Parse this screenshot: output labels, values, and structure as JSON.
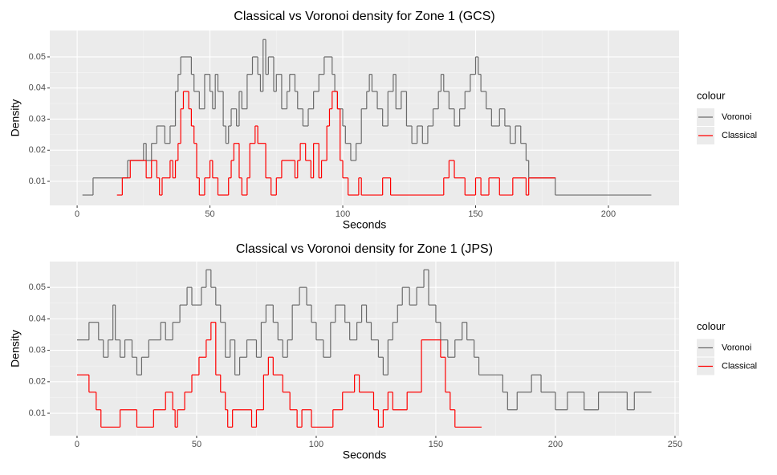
{
  "chart_data": [
    {
      "type": "step",
      "title": "Classical vs Voronoi density for Zone 1 (GCS)",
      "xlabel": "Seconds",
      "ylabel": "Density",
      "xlim": [
        -10.3,
        226.6
      ],
      "ylim": [
        0.00226,
        0.0585
      ],
      "xticks": [
        0,
        50,
        100,
        150,
        200
      ],
      "yticks": [
        0.01,
        0.02,
        0.03,
        0.04,
        0.05
      ],
      "grid": true,
      "legend_title": "colour",
      "legend_position": "right",
      "series": [
        {
          "name": "Voronoi",
          "color": "#6b6b6b",
          "x": [
            2,
            6,
            19,
            25,
            26,
            28,
            30,
            33,
            35,
            37,
            38,
            39,
            43,
            44,
            46,
            48,
            50,
            51,
            52,
            53,
            55,
            56,
            57,
            58,
            60,
            61,
            62,
            64,
            66,
            68,
            69,
            70,
            71,
            72,
            74,
            75,
            77,
            79,
            80,
            82,
            83,
            85,
            87,
            89,
            91,
            93,
            96,
            97,
            98,
            100,
            101,
            103,
            105,
            107,
            109,
            110,
            111,
            113,
            115,
            117,
            119,
            120,
            122,
            124,
            126,
            128,
            130,
            132,
            134,
            136,
            137,
            138,
            140,
            142,
            144,
            146,
            148,
            150,
            151,
            152,
            154,
            156,
            159,
            161,
            163,
            165,
            167,
            169,
            170,
            180,
            216
          ],
          "values": [
            0.0056,
            0.0111,
            0.0167,
            0.0222,
            0.0167,
            0.0222,
            0.0278,
            0.0222,
            0.0278,
            0.0389,
            0.0444,
            0.05,
            0.0444,
            0.0389,
            0.0333,
            0.0444,
            0.0389,
            0.0333,
            0.0444,
            0.0389,
            0.0278,
            0.0222,
            0.0278,
            0.0333,
            0.0278,
            0.0389,
            0.0333,
            0.0444,
            0.05,
            0.0444,
            0.0389,
            0.0556,
            0.0444,
            0.05,
            0.0389,
            0.0444,
            0.0333,
            0.0389,
            0.0444,
            0.0389,
            0.0333,
            0.0278,
            0.0333,
            0.0389,
            0.0444,
            0.05,
            0.0444,
            0.0389,
            0.0333,
            0.0278,
            0.0222,
            0.0167,
            0.0222,
            0.0333,
            0.0389,
            0.0444,
            0.0389,
            0.0333,
            0.0278,
            0.0389,
            0.0444,
            0.0333,
            0.0389,
            0.0278,
            0.0222,
            0.0278,
            0.0222,
            0.0278,
            0.0333,
            0.0389,
            0.0444,
            0.0389,
            0.0333,
            0.0278,
            0.0333,
            0.0389,
            0.0444,
            0.05,
            0.0444,
            0.0389,
            0.0333,
            0.0278,
            0.0333,
            0.0278,
            0.0222,
            0.0278,
            0.0222,
            0.0167,
            0.0111,
            0.0056,
            0.0056
          ]
        },
        {
          "name": "Classical",
          "color": "#ff0000",
          "x": [
            15,
            17,
            20,
            26,
            28,
            30,
            31,
            32,
            35,
            36,
            37,
            38,
            39,
            40,
            42,
            43,
            44,
            45,
            46,
            48,
            50,
            51,
            53,
            57,
            58,
            59,
            61,
            62,
            64,
            65,
            67,
            68,
            71,
            73,
            75,
            77,
            82,
            83,
            84,
            86,
            88,
            89,
            91,
            92,
            94,
            95,
            96,
            98,
            99,
            100,
            102,
            106,
            107,
            115,
            118,
            138,
            140,
            142,
            146,
            150,
            152,
            155,
            159,
            164,
            169,
            170,
            180
          ],
          "values": [
            0.0056,
            0.0111,
            0.0167,
            0.0111,
            0.0167,
            0.0111,
            0.0056,
            0.0111,
            0.0167,
            0.0111,
            0.0167,
            0.0222,
            0.0333,
            0.0389,
            0.0333,
            0.0278,
            0.0222,
            0.0111,
            0.0056,
            0.0111,
            0.0167,
            0.0111,
            0.0056,
            0.0111,
            0.0167,
            0.0222,
            0.0111,
            0.0056,
            0.0111,
            0.0222,
            0.0278,
            0.0222,
            0.0111,
            0.0056,
            0.0111,
            0.0167,
            0.0111,
            0.0167,
            0.0222,
            0.0167,
            0.0111,
            0.0222,
            0.0111,
            0.0167,
            0.0278,
            0.0333,
            0.0389,
            0.0333,
            0.0167,
            0.0111,
            0.0056,
            0.0111,
            0.0056,
            0.0111,
            0.0056,
            0.0111,
            0.0167,
            0.0111,
            0.0056,
            0.0111,
            0.0056,
            0.0111,
            0.0056,
            0.0111,
            0.0056,
            0.0111,
            0.0111
          ]
        }
      ]
    },
    {
      "type": "step",
      "title": "Classical vs Voronoi density for Zone 1 (JPS)",
      "xlabel": "Seconds",
      "ylabel": "Density",
      "xlim": [
        -11.4,
        251.7
      ],
      "ylim": [
        0.00287,
        0.0582
      ],
      "xticks": [
        0,
        50,
        100,
        150,
        200,
        250
      ],
      "yticks": [
        0.01,
        0.02,
        0.03,
        0.04,
        0.05
      ],
      "grid": true,
      "legend_title": "colour",
      "legend_position": "right",
      "series": [
        {
          "name": "Voronoi",
          "color": "#6b6b6b",
          "x": [
            0,
            5,
            9,
            11,
            13,
            15,
            16,
            18,
            20,
            23,
            25,
            27,
            30,
            35,
            37,
            40,
            43,
            46,
            48,
            52,
            54,
            56,
            58,
            60,
            62,
            64,
            66,
            68,
            71,
            75,
            77,
            79,
            82,
            84,
            86,
            88,
            90,
            93,
            96,
            98,
            100,
            103,
            106,
            108,
            112,
            114,
            117,
            119,
            121,
            123,
            126,
            128,
            130,
            132,
            134,
            136,
            139,
            142,
            145,
            147,
            150,
            152,
            155,
            158,
            161,
            163,
            166,
            168,
            178,
            180,
            184,
            190,
            194,
            200,
            205,
            212,
            218,
            230,
            233,
            240
          ],
          "values": [
            0.0333,
            0.0389,
            0.0333,
            0.0278,
            0.0333,
            0.0444,
            0.0333,
            0.0278,
            0.0333,
            0.0278,
            0.0222,
            0.0278,
            0.0333,
            0.0389,
            0.0333,
            0.0389,
            0.0444,
            0.05,
            0.0444,
            0.05,
            0.0556,
            0.05,
            0.0444,
            0.0389,
            0.0278,
            0.0333,
            0.0222,
            0.0278,
            0.0333,
            0.0278,
            0.0389,
            0.0444,
            0.0389,
            0.0333,
            0.0278,
            0.0333,
            0.0444,
            0.05,
            0.0444,
            0.0389,
            0.0333,
            0.0278,
            0.0389,
            0.0444,
            0.0389,
            0.0333,
            0.0389,
            0.0444,
            0.0389,
            0.0333,
            0.0278,
            0.0222,
            0.0333,
            0.0389,
            0.0444,
            0.05,
            0.0444,
            0.05,
            0.0556,
            0.0444,
            0.0389,
            0.0333,
            0.0278,
            0.0333,
            0.0389,
            0.0333,
            0.0278,
            0.0222,
            0.0167,
            0.0111,
            0.0167,
            0.0222,
            0.0167,
            0.0111,
            0.0167,
            0.0111,
            0.0167,
            0.0111,
            0.0167,
            0.0167
          ]
        },
        {
          "name": "Classical",
          "color": "#ff0000",
          "x": [
            0,
            5,
            8,
            10,
            18,
            25,
            32,
            37,
            40,
            41,
            42,
            45,
            48,
            51,
            54,
            56,
            58,
            60,
            62,
            63,
            65,
            73,
            75,
            78,
            80,
            82,
            86,
            89,
            92,
            94,
            98,
            107,
            111,
            116,
            118,
            124,
            126,
            128,
            130,
            132,
            138,
            144,
            152,
            154,
            156,
            158,
            169
          ],
          "values": [
            0.0222,
            0.0167,
            0.0111,
            0.0056,
            0.0111,
            0.0056,
            0.0111,
            0.0167,
            0.0111,
            0.0056,
            0.0111,
            0.0167,
            0.0222,
            0.0278,
            0.0333,
            0.0389,
            0.0222,
            0.0167,
            0.0111,
            0.0056,
            0.0111,
            0.0056,
            0.0111,
            0.0222,
            0.0278,
            0.0222,
            0.0167,
            0.0111,
            0.0056,
            0.0111,
            0.0056,
            0.0111,
            0.0167,
            0.0222,
            0.0167,
            0.0111,
            0.0056,
            0.0111,
            0.0167,
            0.0111,
            0.0167,
            0.0333,
            0.0278,
            0.0167,
            0.0111,
            0.0056,
            0.0056
          ]
        }
      ]
    }
  ]
}
